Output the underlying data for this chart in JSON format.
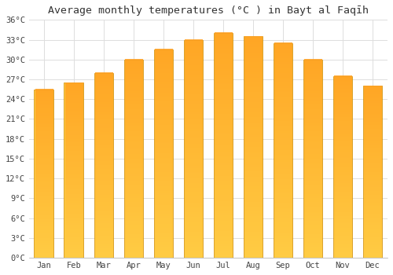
{
  "title": "Average monthly temperatures (°C ) in Bayt al Faqīh",
  "months": [
    "Jan",
    "Feb",
    "Mar",
    "Apr",
    "May",
    "Jun",
    "Jul",
    "Aug",
    "Sep",
    "Oct",
    "Nov",
    "Dec"
  ],
  "values": [
    25.5,
    26.5,
    28.0,
    30.0,
    31.5,
    33.0,
    34.0,
    33.5,
    32.5,
    30.0,
    27.5,
    26.0
  ],
  "bar_color_bottom": "#FFCC44",
  "bar_color_top": "#FFA020",
  "bar_edge_color": "#CC8800",
  "background_color": "#ffffff",
  "grid_color": "#dddddd",
  "ylim": [
    0,
    36
  ],
  "yticks": [
    0,
    3,
    6,
    9,
    12,
    15,
    18,
    21,
    24,
    27,
    30,
    33,
    36
  ],
  "title_fontsize": 9.5,
  "tick_fontsize": 7.5,
  "bar_width": 0.65
}
